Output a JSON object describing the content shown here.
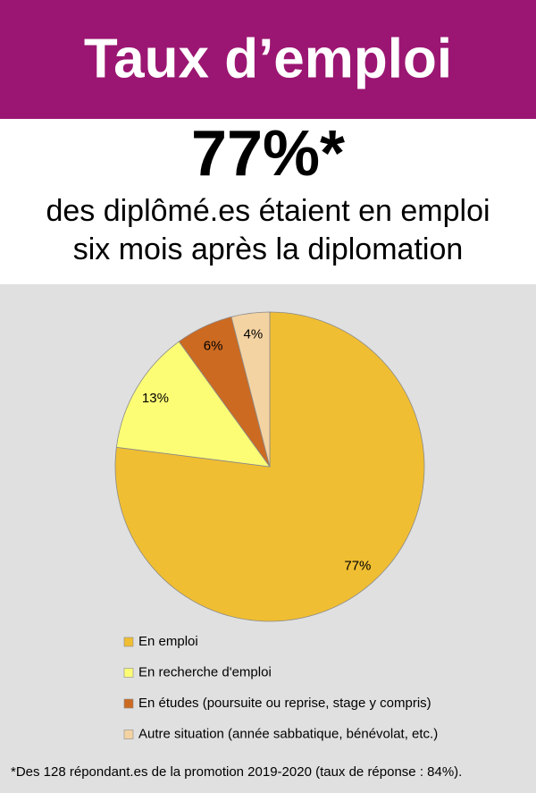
{
  "header": {
    "title": "Taux d’emploi",
    "headline": "77%*",
    "subtitle": [
      "des diplômé.es étaient en emploi",
      "six mois après la diplomation"
    ]
  },
  "chart_data": {
    "type": "pie",
    "categories": [
      "En emploi",
      "En recherche d'emploi",
      "En études (poursuite ou reprise, stage y compris)",
      "Autre situation (année sabbatique, bénévolat, etc.)"
    ],
    "values": [
      77,
      13,
      6,
      4
    ],
    "value_labels": [
      "77%",
      "13%",
      "6%",
      "4%"
    ],
    "colors": [
      "#f0be32",
      "#fdfd75",
      "#cc6a22",
      "#f4d3a2"
    ]
  },
  "footnote": "*Des 128 répondant.es de la promotion 2019-2020 (taux de réponse : 84%)."
}
